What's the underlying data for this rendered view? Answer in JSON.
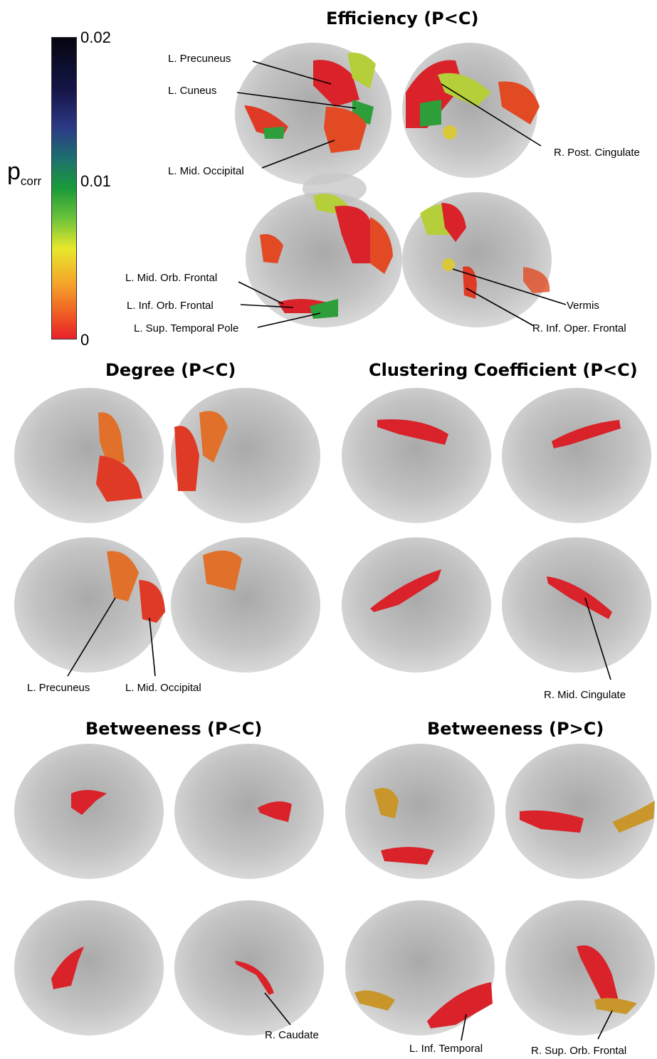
{
  "colorbar": {
    "label_main": "p",
    "label_sub": "corr",
    "ticks": [
      "0.02",
      "0.01",
      "0"
    ]
  },
  "titles": {
    "efficiency": "Efficiency (P<C)",
    "degree": "Degree (P<C)",
    "clustering": "Clustering Coefficient (P<C)",
    "betweenness_pc": "Betweeness (P<C)",
    "betweenness_cp": "Betweeness (P>C)"
  },
  "labels": {
    "l_precuneus": "L. Precuneus",
    "l_cuneus": "L. Cuneus",
    "l_mid_occipital": "L. Mid. Occipital",
    "r_post_cingulate": "R. Post. Cingulate",
    "l_mid_orb_frontal": "L. Mid. Orb. Frontal",
    "l_inf_orb_frontal": "L. Inf. Orb. Frontal",
    "l_sup_temporal_pole": "L. Sup. Temporal Pole",
    "vermis": "Vermis",
    "r_inf_oper_frontal": "R. Inf. Oper. Frontal",
    "deg_l_precuneus": "L. Precuneus",
    "deg_l_mid_occipital": "L. Mid. Occipital",
    "r_mid_cingulate": "R. Mid. Cingulate",
    "r_caudate": "R. Caudate",
    "l_inf_temporal": "L. Inf. Temporal",
    "r_sup_orb_frontal": "R.  Sup. Orb. Frontal"
  },
  "colors": {
    "red": "#d9222a",
    "orange": "#e0702a",
    "green": "#2e9e3a",
    "yellowgreen": "#b5cf3a",
    "gold": "#c8962a",
    "brain": "#bdbdbd"
  }
}
